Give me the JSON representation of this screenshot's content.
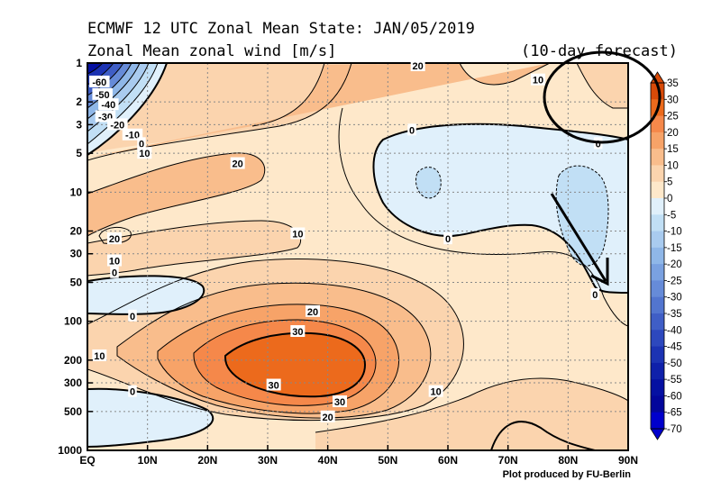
{
  "title": {
    "line1": "ECMWF 12 UTC Zonal Mean State: JAN/05/2019",
    "line2": "Zonal Mean zonal wind [m/s]",
    "forecast": "(10-day forecast)"
  },
  "credit": "Plot produced by FU-Berlin",
  "colors": {
    "background": "#fff2dc",
    "accent_circle": "#000000",
    "arrow": "#000000"
  },
  "chart_data": {
    "type": "heatmap",
    "title": "Zonal Mean zonal wind [m/s]",
    "x_label": "",
    "y_label": "",
    "x_ticks": [
      "EQ",
      "10N",
      "20N",
      "30N",
      "40N",
      "50N",
      "60N",
      "70N",
      "80N",
      "90N"
    ],
    "x_values": [
      0,
      10,
      20,
      30,
      40,
      50,
      60,
      70,
      80,
      90
    ],
    "x_range": [
      0,
      90
    ],
    "y_ticks": [
      "1",
      "2",
      "3",
      "5",
      "10",
      "20",
      "30",
      "50",
      "100",
      "200",
      "300",
      "500",
      "1000"
    ],
    "y_values": [
      1,
      2,
      3,
      5,
      10,
      20,
      30,
      50,
      100,
      200,
      300,
      500,
      1000
    ],
    "y_range_hPa": [
      1,
      1000
    ],
    "y_scale": "log",
    "grid": true,
    "colorbar": {
      "labels": [
        "35",
        "30",
        "25",
        "20",
        "15",
        "10",
        "5",
        "0",
        "-5",
        "-10",
        "-15",
        "-20",
        "-25",
        "-30",
        "-35",
        "-40",
        "-45",
        "-50",
        "-55",
        "-60",
        "-65",
        "-70"
      ],
      "levels": [
        35,
        30,
        25,
        20,
        15,
        10,
        5,
        0,
        -5,
        -10,
        -15,
        -20,
        -25,
        -30,
        -35,
        -40,
        -45,
        -50,
        -55,
        -60,
        -65,
        -70
      ],
      "colors": [
        "#d84a08",
        "#ec6a1c",
        "#f5884a",
        "#f7a368",
        "#f9bd8c",
        "#fbd4ae",
        "#fee8ca",
        "#e0f0fb",
        "#c1dff5",
        "#a9cbef",
        "#8fb7e8",
        "#7aa1e0",
        "#668bd8",
        "#5275cf",
        "#3f5ec6",
        "#2d48bd",
        "#1c33b3",
        "#0f20aa",
        "#0510a2",
        "#03069b",
        "#0000cc"
      ]
    },
    "contour_labels": [
      {
        "value": "-60",
        "lat": 2,
        "p": 1.4
      },
      {
        "value": "-50",
        "lat": 2.5,
        "p": 1.75
      },
      {
        "value": "-40",
        "lat": 3.5,
        "p": 2.1
      },
      {
        "value": "-30",
        "lat": 3,
        "p": 2.6
      },
      {
        "value": "-20",
        "lat": 5,
        "p": 3.0
      },
      {
        "value": "-10",
        "lat": 7.5,
        "p": 3.6
      },
      {
        "value": "0",
        "lat": 9,
        "p": 4.2
      },
      {
        "value": "10",
        "lat": 9.5,
        "p": 5.0
      },
      {
        "value": "20",
        "lat": 25,
        "p": 6.0
      },
      {
        "value": "20",
        "lat": 55,
        "p": 1.05
      },
      {
        "value": "10",
        "lat": 75,
        "p": 1.35
      },
      {
        "value": "0",
        "lat": 54,
        "p": 3.3
      },
      {
        "value": "0",
        "lat": 85,
        "p": 4.2
      },
      {
        "value": "0",
        "lat": 60,
        "p": 23
      },
      {
        "value": "10",
        "lat": 35,
        "p": 21
      },
      {
        "value": "20",
        "lat": 4.5,
        "p": 23
      },
      {
        "value": "10",
        "lat": 4.5,
        "p": 34
      },
      {
        "value": "0",
        "lat": 4.5,
        "p": 42
      },
      {
        "value": "0",
        "lat": 84.5,
        "p": 62
      },
      {
        "value": "0",
        "lat": 7.5,
        "p": 91
      },
      {
        "value": "20",
        "lat": 37.5,
        "p": 84
      },
      {
        "value": "30",
        "lat": 35,
        "p": 120
      },
      {
        "value": "10",
        "lat": 2,
        "p": 185
      },
      {
        "value": "30",
        "lat": 31,
        "p": 312
      },
      {
        "value": "30",
        "lat": 42,
        "p": 420
      },
      {
        "value": "10",
        "lat": 58,
        "p": 350
      },
      {
        "value": "20",
        "lat": 40,
        "p": 550
      },
      {
        "value": "0",
        "lat": 7.5,
        "p": 350
      }
    ],
    "annotations": [
      {
        "type": "circle",
        "description": "ellipse drawn around upper polar region",
        "lat_range": [
          76,
          90
        ],
        "p_range": [
          1,
          5
        ]
      },
      {
        "type": "arrow",
        "description": "arrow pointing to 0 contour near 85N, 50 hPa",
        "from": {
          "lat": 78,
          "p": 10
        },
        "to": {
          "lat": 86,
          "p": 55
        }
      }
    ]
  }
}
